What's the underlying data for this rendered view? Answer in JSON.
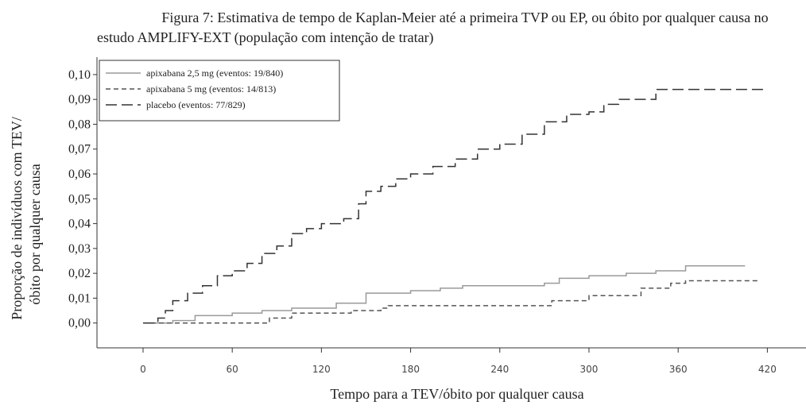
{
  "chart_data": {
    "type": "line",
    "step": true,
    "title": [
      "Figura 7: Estimativa de tempo de Kaplan-Meier até a primeira TVP ou EP, ou óbito por qualquer causa no",
      "estudo AMPLIFY-EXT (população com intenção de tratar)"
    ],
    "ylabel": [
      "Proporção de indivíduos com TEV/",
      "óbito por qualquer causa"
    ],
    "xlabel": "Tempo para a TEV/óbito por qualquer causa",
    "xlim": [
      -31,
      446
    ],
    "ylim": [
      -0.01,
      0.107
    ],
    "xticks": [
      0,
      60,
      120,
      180,
      240,
      300,
      360,
      420
    ],
    "yticks": [
      {
        "value": 0,
        "label": "0,00"
      },
      {
        "value": 0.01,
        "label": "0,01"
      },
      {
        "value": 0.02,
        "label": "0,02"
      },
      {
        "value": 0.03,
        "label": "0,03"
      },
      {
        "value": 0.04,
        "label": "0,04"
      },
      {
        "value": 0.05,
        "label": "0,05"
      },
      {
        "value": 0.06,
        "label": "0,06"
      },
      {
        "value": 0.07,
        "label": "0,07"
      },
      {
        "value": 0.08,
        "label": "0,08"
      },
      {
        "value": 0.09,
        "label": "0,09"
      },
      {
        "value": 0.1,
        "label": "0,10"
      }
    ],
    "legend": "top-left",
    "series": [
      {
        "name": "apixabana 2,5 mg (eventos: 19/840)",
        "color": "#9a9a9a",
        "dash": "none",
        "x": [
          0,
          20,
          35,
          60,
          80,
          100,
          130,
          150,
          180,
          200,
          215,
          270,
          280,
          300,
          325,
          345,
          365,
          405
        ],
        "values": [
          0,
          0.001,
          0.003,
          0.004,
          0.005,
          0.006,
          0.008,
          0.012,
          0.013,
          0.014,
          0.015,
          0.016,
          0.018,
          0.019,
          0.02,
          0.021,
          0.023,
          0.023
        ]
      },
      {
        "name": "apixabana 5 mg (eventos: 14/813)",
        "color": "#555555",
        "dash": "6 4",
        "x": [
          0,
          85,
          100,
          140,
          160,
          165,
          275,
          300,
          335,
          355,
          365,
          415
        ],
        "values": [
          0,
          0.002,
          0.004,
          0.005,
          0.006,
          0.007,
          0.009,
          0.011,
          0.014,
          0.016,
          0.017,
          0.017
        ]
      },
      {
        "name": "placebo (eventos: 77/829)",
        "color": "#333333",
        "dash": "14 6",
        "x": [
          0,
          10,
          15,
          20,
          30,
          40,
          50,
          60,
          70,
          80,
          90,
          100,
          110,
          120,
          135,
          145,
          150,
          160,
          170,
          180,
          195,
          210,
          225,
          240,
          255,
          270,
          285,
          300,
          310,
          320,
          345,
          420
        ],
        "values": [
          0,
          0.002,
          0.005,
          0.009,
          0.012,
          0.015,
          0.019,
          0.021,
          0.024,
          0.028,
          0.031,
          0.036,
          0.038,
          0.04,
          0.042,
          0.048,
          0.053,
          0.055,
          0.058,
          0.06,
          0.063,
          0.066,
          0.07,
          0.072,
          0.076,
          0.081,
          0.084,
          0.085,
          0.088,
          0.09,
          0.094,
          0.094
        ]
      }
    ]
  }
}
